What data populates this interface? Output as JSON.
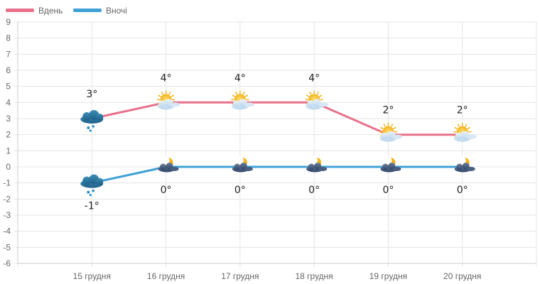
{
  "chart_data": {
    "type": "line",
    "categories": [
      "15 грудня",
      "16 грудня",
      "17 грудня",
      "18 грудня",
      "19 грудня",
      "20 грудня"
    ],
    "series": [
      {
        "name": "Вдень",
        "color": "#e8708b",
        "values": [
          3,
          4,
          4,
          4,
          2,
          2
        ],
        "labels": [
          "3°",
          "4°",
          "4°",
          "4°",
          "2°",
          "2°"
        ],
        "icons": [
          "snow-cloud-icon",
          "sun-cloud-icon",
          "sun-cloud-icon",
          "sun-cloud-icon",
          "sun-cloud-icon",
          "sun-cloud-icon"
        ]
      },
      {
        "name": "Вночі",
        "color": "#3fa0d5",
        "values": [
          -1,
          0,
          0,
          0,
          0,
          0
        ],
        "labels": [
          "-1°",
          "0°",
          "0°",
          "0°",
          "0°",
          "0°"
        ],
        "icons": [
          "snow-cloud-icon",
          "moon-cloud-icon",
          "moon-cloud-icon",
          "moon-cloud-icon",
          "moon-cloud-icon",
          "moon-cloud-icon"
        ]
      }
    ],
    "ylim": [
      -6,
      9
    ],
    "yticks": [
      "9",
      "8",
      "7",
      "6",
      "5",
      "4",
      "3",
      "2",
      "1",
      "0",
      "-1",
      "-2",
      "-3",
      "-4",
      "-5",
      "-6"
    ],
    "grid": true,
    "legend": "top-left",
    "title": "",
    "xlabel": "",
    "ylabel": ""
  }
}
